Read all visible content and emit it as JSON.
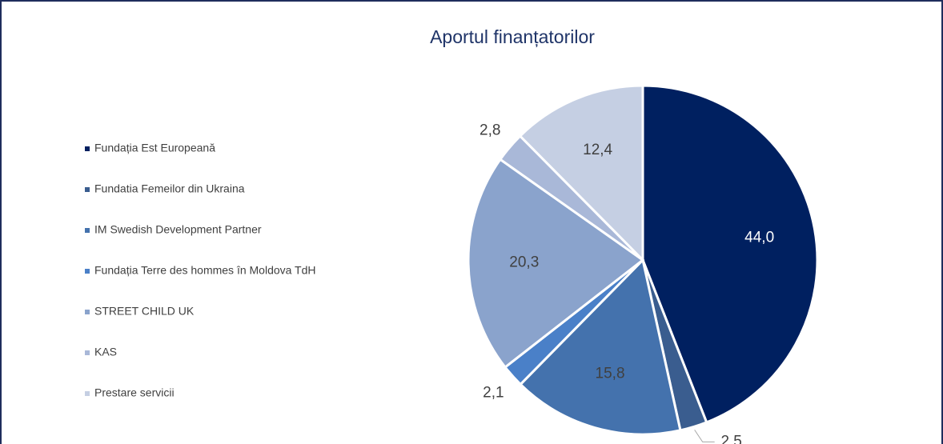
{
  "chart_data": {
    "type": "pie",
    "title": "Aportul finanțatorilor",
    "categories": [
      "Fundația Est Europeană",
      "Fundatia Femeilor din Ukraina",
      "IM Swedish Development Partner",
      "Fundația Terre des hommes în Moldova TdH",
      "STREET CHILD UK",
      "KAS",
      "Prestare servicii"
    ],
    "values": [
      44.0,
      2.5,
      15.8,
      2.1,
      20.3,
      2.8,
      12.4
    ],
    "value_labels": [
      "44,0",
      "2,5",
      "15,8",
      "2,1",
      "20,3",
      "2,8",
      "12,4"
    ],
    "colors": [
      "#002060",
      "#3a5d8f",
      "#4472ad",
      "#4a80c8",
      "#8aa3cc",
      "#a9b8d8",
      "#c5cfe3"
    ],
    "legend": "left"
  }
}
